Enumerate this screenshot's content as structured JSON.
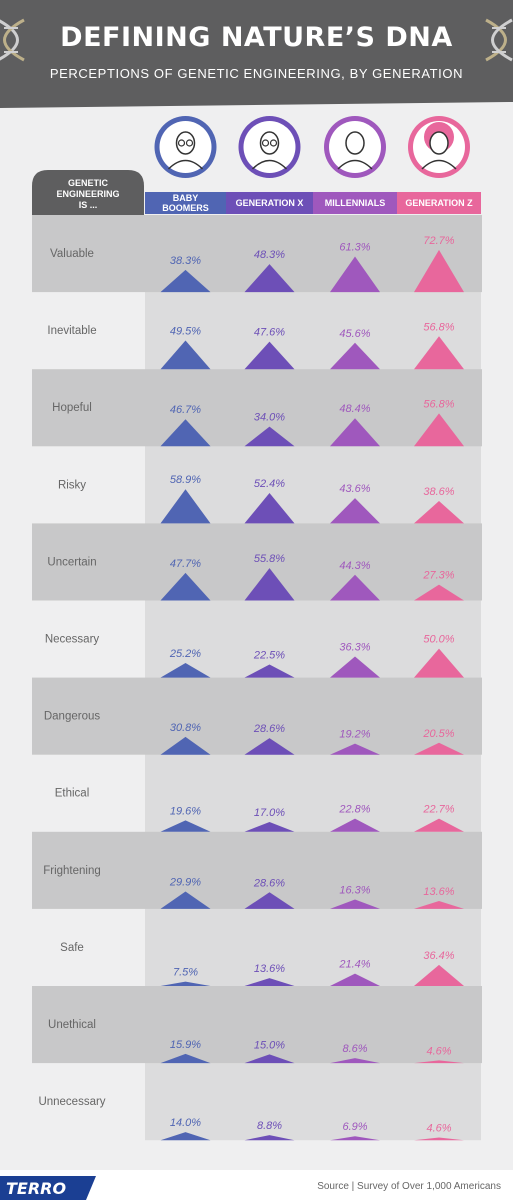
{
  "header": {
    "title": "DEFINING NATURE’S DNA",
    "subtitle": "PERCEPTIONS OF GENETIC ENGINEERING, BY GENERATION"
  },
  "chart_data": {
    "type": "table",
    "row_header": "GENETIC ENGINEERING IS ...",
    "categories": [
      "Valuable",
      "Inevitable",
      "Hopeful",
      "Risky",
      "Uncertain",
      "Necessary",
      "Dangerous",
      "Ethical",
      "Frightening",
      "Safe",
      "Unethical",
      "Unnecessary"
    ],
    "series": [
      {
        "name": "BABY BOOMERS",
        "color": "#5065b3",
        "icon": "old-man-icon",
        "values": [
          38.3,
          49.5,
          46.7,
          58.9,
          47.7,
          25.2,
          30.8,
          19.6,
          29.9,
          7.5,
          15.9,
          14.0
        ]
      },
      {
        "name": "GENERATION X",
        "color": "#6d4fb7",
        "icon": "woman-glasses-icon",
        "values": [
          48.3,
          47.6,
          34.0,
          52.4,
          55.8,
          22.5,
          28.6,
          17.0,
          28.6,
          13.6,
          15.0,
          8.8
        ]
      },
      {
        "name": "MILLENNIALS",
        "color": "#9f58bd",
        "icon": "man-icon",
        "values": [
          61.3,
          45.6,
          48.4,
          43.6,
          44.3,
          36.3,
          19.2,
          22.8,
          16.3,
          21.4,
          8.6,
          6.9
        ]
      },
      {
        "name": "GENERATION Z",
        "color": "#e8679c",
        "icon": "girl-icon",
        "values": [
          72.7,
          56.8,
          56.8,
          38.6,
          27.3,
          50.0,
          20.5,
          22.7,
          13.6,
          36.4,
          4.6,
          4.6
        ]
      }
    ],
    "value_format": "percent"
  },
  "footer": {
    "logo": "TERRO",
    "source": "Source | Survey of Over 1,000 Americans"
  },
  "colors": {
    "header": "#5e5e5f",
    "row_band": "#c8c8c9",
    "label": "#666666"
  }
}
